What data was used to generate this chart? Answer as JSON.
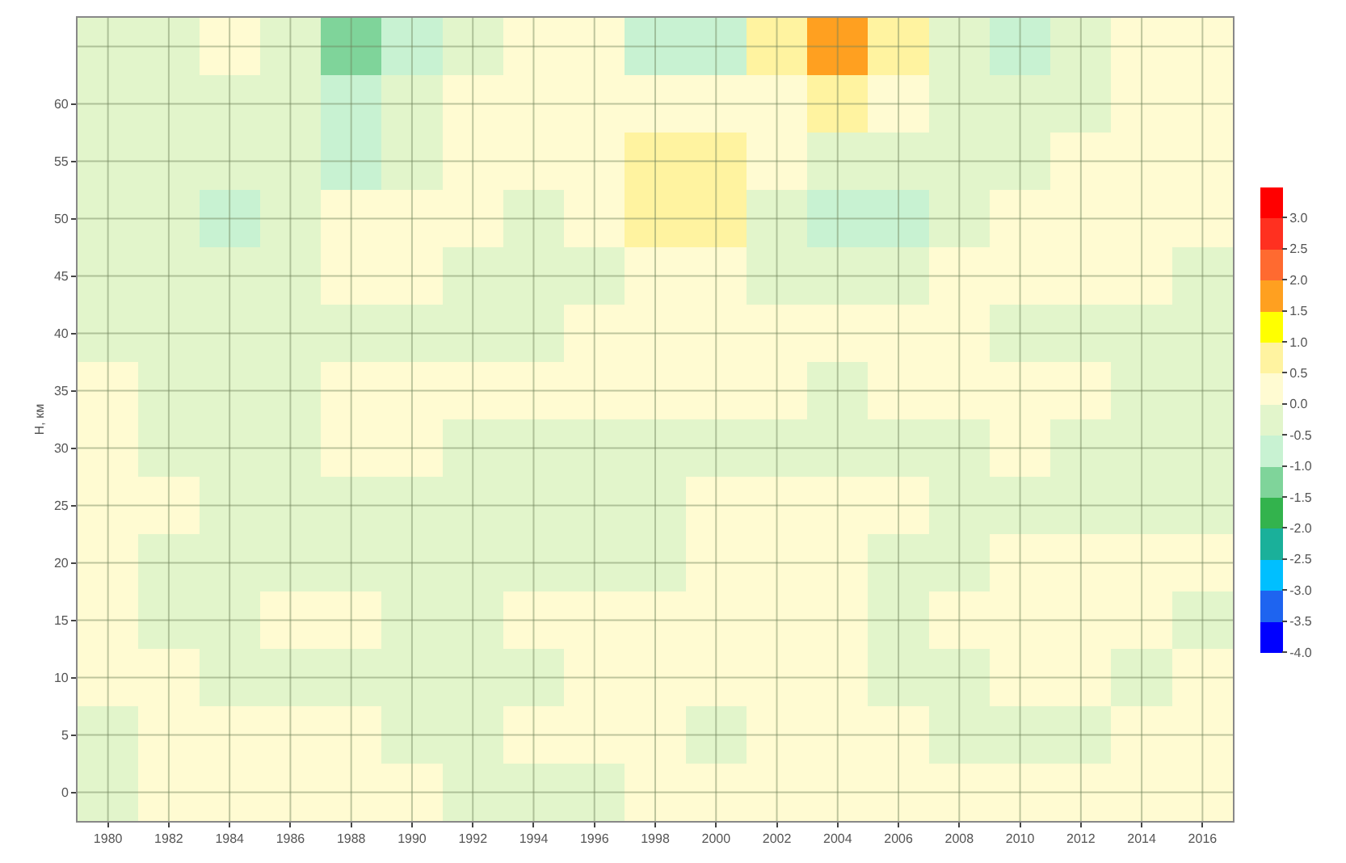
{
  "chart_data": {
    "type": "heatmap",
    "ylabel": "H, км",
    "categories": [
      "1980",
      "1982",
      "1984",
      "1986",
      "1988",
      "1990",
      "1992",
      "1994",
      "1996",
      "1998",
      "2000",
      "2002",
      "2004",
      "2006",
      "2008",
      "2010",
      "2012",
      "2014",
      "2016"
    ],
    "y_categories": [
      null,
      "60",
      "55",
      "50",
      "45",
      "40",
      "35",
      "30",
      "25",
      "20",
      "15",
      "10",
      "5",
      "0"
    ],
    "cells": [
      [
        -0.25,
        -0.25,
        0.25,
        -0.25,
        -1.25,
        -0.75,
        -0.25,
        0.25,
        0.25,
        -0.75,
        -0.75,
        0.75,
        1.75,
        0.75,
        -0.25,
        -0.75,
        -0.25,
        0.25,
        0.25
      ],
      [
        -0.25,
        -0.25,
        -0.25,
        -0.25,
        -0.75,
        -0.25,
        0.25,
        0.25,
        0.25,
        0.25,
        0.25,
        0.25,
        0.75,
        0.25,
        -0.25,
        -0.25,
        -0.25,
        0.25,
        0.25
      ],
      [
        -0.25,
        -0.25,
        -0.25,
        -0.25,
        -0.75,
        -0.25,
        0.25,
        0.25,
        0.25,
        0.75,
        0.75,
        0.25,
        -0.25,
        -0.25,
        -0.25,
        -0.25,
        0.25,
        0.25,
        0.25
      ],
      [
        -0.25,
        -0.25,
        -0.75,
        -0.25,
        0.25,
        0.25,
        0.25,
        -0.25,
        0.25,
        0.75,
        0.75,
        -0.25,
        -0.75,
        -0.75,
        -0.25,
        0.25,
        0.25,
        0.25,
        0.25
      ],
      [
        -0.25,
        -0.25,
        -0.25,
        -0.25,
        0.25,
        0.25,
        -0.25,
        -0.25,
        -0.25,
        0.25,
        0.25,
        -0.25,
        -0.25,
        -0.25,
        0.25,
        0.25,
        0.25,
        0.25,
        -0.25
      ],
      [
        -0.25,
        -0.25,
        -0.25,
        -0.25,
        -0.25,
        -0.25,
        -0.25,
        -0.25,
        0.25,
        0.25,
        0.25,
        0.25,
        0.25,
        0.25,
        0.25,
        -0.25,
        -0.25,
        -0.25,
        -0.25
      ],
      [
        0.25,
        -0.25,
        -0.25,
        -0.25,
        0.25,
        0.25,
        0.25,
        0.25,
        0.25,
        0.25,
        0.25,
        0.25,
        -0.25,
        0.25,
        0.25,
        0.25,
        0.25,
        -0.25,
        -0.25
      ],
      [
        0.25,
        -0.25,
        -0.25,
        -0.25,
        0.25,
        0.25,
        -0.25,
        -0.25,
        -0.25,
        -0.25,
        -0.25,
        -0.25,
        -0.25,
        -0.25,
        -0.25,
        0.25,
        -0.25,
        -0.25,
        -0.25
      ],
      [
        0.25,
        0.25,
        -0.25,
        -0.25,
        -0.25,
        -0.25,
        -0.25,
        -0.25,
        -0.25,
        -0.25,
        0.25,
        0.25,
        0.25,
        0.25,
        -0.25,
        -0.25,
        -0.25,
        -0.25,
        -0.25
      ],
      [
        0.25,
        -0.25,
        -0.25,
        -0.25,
        -0.25,
        -0.25,
        -0.25,
        -0.25,
        -0.25,
        -0.25,
        0.25,
        0.25,
        0.25,
        -0.25,
        -0.25,
        0.25,
        0.25,
        0.25,
        0.25
      ],
      [
        0.25,
        -0.25,
        -0.25,
        0.25,
        0.25,
        -0.25,
        -0.25,
        0.25,
        0.25,
        0.25,
        0.25,
        0.25,
        0.25,
        -0.25,
        0.25,
        0.25,
        0.25,
        0.25,
        -0.25
      ],
      [
        0.25,
        0.25,
        -0.25,
        -0.25,
        -0.25,
        -0.25,
        -0.25,
        -0.25,
        0.25,
        0.25,
        0.25,
        0.25,
        0.25,
        -0.25,
        -0.25,
        0.25,
        0.25,
        -0.25,
        0.25
      ],
      [
        -0.25,
        0.25,
        0.25,
        0.25,
        0.25,
        -0.25,
        -0.25,
        0.25,
        0.25,
        0.25,
        -0.25,
        0.25,
        0.25,
        0.25,
        -0.25,
        -0.25,
        -0.25,
        0.25,
        0.25
      ],
      [
        -0.25,
        0.25,
        0.25,
        0.25,
        0.25,
        0.25,
        -0.25,
        -0.25,
        -0.25,
        0.25,
        0.25,
        0.25,
        0.25,
        0.25,
        0.25,
        0.25,
        0.25,
        0.25,
        0.25
      ]
    ],
    "colors": [
      "#0000ff",
      "#1e64f0",
      "#00bfff",
      "#1ab09a",
      "#33b34d",
      "#7fd49a",
      "#c8f2d2",
      "#e2f5cb",
      "#fffbd2",
      "#fff3a0",
      "#ffff00",
      "#ffa020",
      "#ff6a30",
      "#ff3020",
      "#ff0000"
    ],
    "clim": [
      -4,
      3.5
    ],
    "cticks": [
      {
        "value": 3,
        "label": "3.0"
      },
      {
        "value": 2.5,
        "label": "2.5"
      },
      {
        "value": 2,
        "label": "2.0"
      },
      {
        "value": 1.5,
        "label": "1.5"
      },
      {
        "value": 1,
        "label": "1.0"
      },
      {
        "value": 0.5,
        "label": "0.5"
      },
      {
        "value": 0,
        "label": "0.0"
      },
      {
        "value": -0.5,
        "label": "-0.5"
      },
      {
        "value": -1,
        "label": "-1.0"
      },
      {
        "value": -1.5,
        "label": "-1.5"
      },
      {
        "value": -2,
        "label": "-2.0"
      },
      {
        "value": -2.5,
        "label": "-2.5"
      },
      {
        "value": -3,
        "label": "-3.0"
      },
      {
        "value": -3.5,
        "label": "-3.5"
      },
      {
        "value": -4,
        "label": "-4.0"
      }
    ],
    "grid": true
  }
}
